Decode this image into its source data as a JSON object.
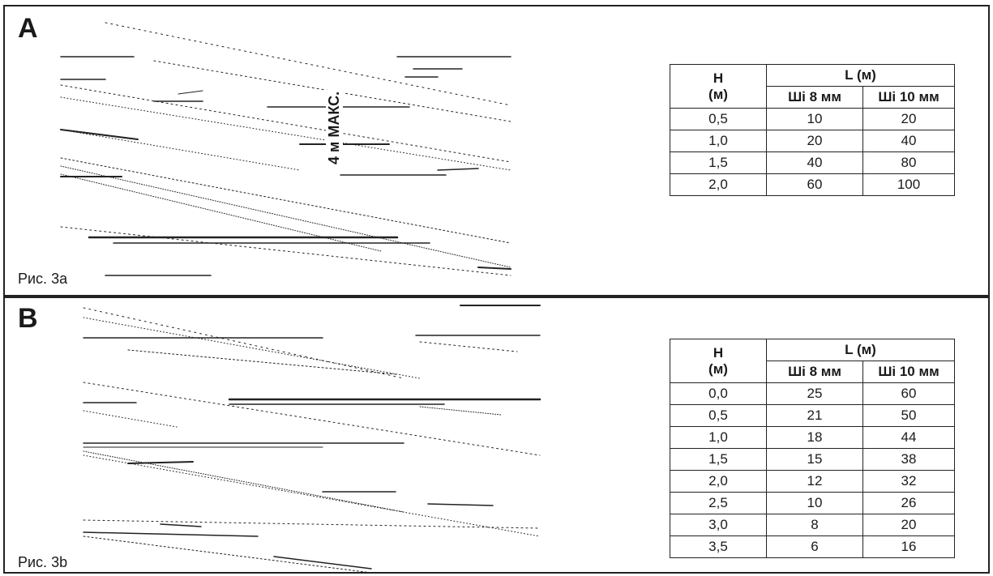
{
  "panels": [
    {
      "letter": "A",
      "caption": "Рис. 3a",
      "drawing_label": "4 м МАКС.",
      "table": {
        "header_h": "H",
        "header_h_unit": "(м)",
        "header_l": "L (м)",
        "col1": "Ші 8 мм",
        "col2": "Ші 10 мм",
        "rows": [
          [
            "0,5",
            "10",
            "20"
          ],
          [
            "1,0",
            "20",
            "40"
          ],
          [
            "1,5",
            "40",
            "80"
          ],
          [
            "2,0",
            "60",
            "100"
          ]
        ]
      }
    },
    {
      "letter": "B",
      "caption": "Рис. 3b",
      "table": {
        "header_h": "H",
        "header_h_unit": "(м)",
        "header_l": "L (м)",
        "col1": "Ші 8 мм",
        "col2": "Ші 10 мм",
        "rows": [
          [
            "0,0",
            "25",
            "60"
          ],
          [
            "0,5",
            "21",
            "50"
          ],
          [
            "1,0",
            "18",
            "44"
          ],
          [
            "1,5",
            "15",
            "38"
          ],
          [
            "2,0",
            "12",
            "32"
          ],
          [
            "2,5",
            "10",
            "26"
          ],
          [
            "3,0",
            "8",
            "20"
          ],
          [
            "3,5",
            "6",
            "16"
          ]
        ]
      }
    }
  ]
}
